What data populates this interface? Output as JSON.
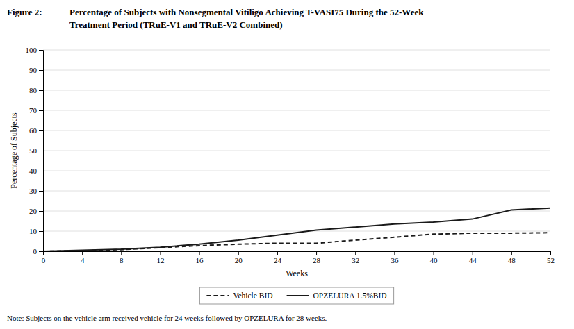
{
  "chart_data": {
    "type": "line",
    "title": [
      "Figure 2:",
      "Percentage of Subjects with Nonsegmental Vitiligo Achieving T-VASI75 During the 52-Week",
      "Treatment Period (TRuE-V1 and TRuE-V2 Combined)"
    ],
    "x_label": "Weeks",
    "y_label": "Percentage of Subjects",
    "annotations": [
      "Note: Subjects on the vehicle arm received vehicle for 24 weeks followed by OPZELURA for 28 weeks."
    ],
    "x": [
      0,
      4,
      8,
      12,
      16,
      20,
      24,
      28,
      32,
      36,
      40,
      44,
      48,
      52
    ],
    "series": [
      {
        "name": "Vehicle BID",
        "color": "#1a1a1a",
        "line_style": "dashed",
        "values": [
          0,
          0.3,
          0.8,
          1.8,
          2.8,
          3.5,
          4.0,
          4.0,
          5.5,
          7.0,
          8.5,
          9.0,
          9.0,
          9.2
        ]
      },
      {
        "name": "OPZELURA 1.5%BID",
        "color": "#1a1a1a",
        "line_style": "solid",
        "values": [
          0,
          0.5,
          1.0,
          2.0,
          3.5,
          5.5,
          8.0,
          10.5,
          12.0,
          13.5,
          14.5,
          16.0,
          20.5,
          21.5
        ]
      }
    ],
    "xlim": [
      0,
      52
    ],
    "ylim": [
      0,
      100
    ],
    "xticks": [
      0,
      4,
      8,
      12,
      16,
      20,
      24,
      28,
      32,
      36,
      40,
      44,
      48,
      52
    ],
    "yticks": [
      0,
      10,
      20,
      30,
      40,
      50,
      60,
      70,
      80,
      90,
      100
    ],
    "grid": true,
    "legend": "bottom"
  }
}
